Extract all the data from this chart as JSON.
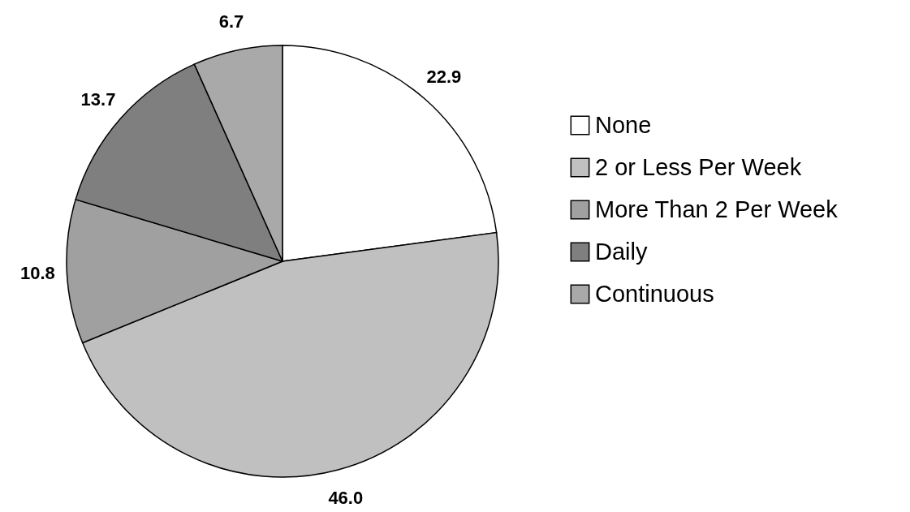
{
  "chart_data": {
    "type": "pie",
    "categories": [
      "None",
      "2 or Less Per Week",
      "More Than 2 Per Week",
      "Daily",
      "Continuous"
    ],
    "values": [
      22.9,
      46.0,
      10.8,
      13.7,
      6.7
    ],
    "colors": [
      "#ffffff",
      "#c0c0c0",
      "#a0a0a0",
      "#7f7f7f",
      "#a9a9a9"
    ],
    "value_labels": [
      "22.9",
      "46.0",
      "10.8",
      "13.7",
      "6.7"
    ],
    "legend": "right"
  }
}
